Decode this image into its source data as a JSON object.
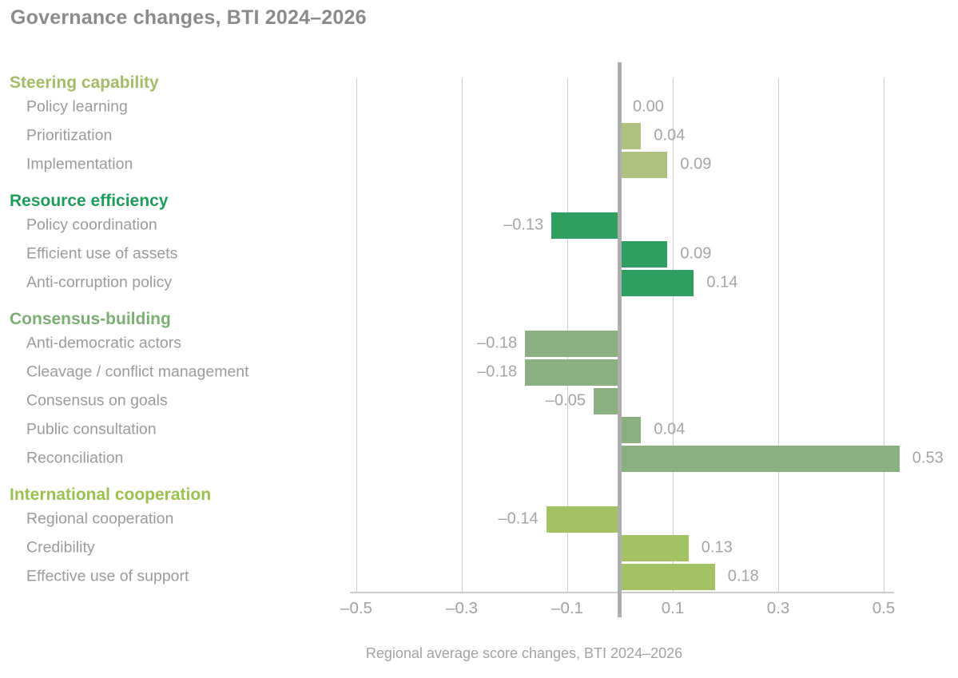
{
  "chart_data": {
    "type": "bar",
    "orientation": "horizontal",
    "title": "Governance changes, BTI 2024–2026",
    "xlabel": "Regional average score changes, BTI 2024–2026",
    "xlim": [
      -0.5,
      0.5
    ],
    "grid": "vertical",
    "x_ticks": [
      {
        "v": -0.5,
        "label": "–0.5"
      },
      {
        "v": -0.3,
        "label": "–0.3"
      },
      {
        "v": -0.1,
        "label": "–0.1"
      },
      {
        "v": 0.1,
        "label": "0.1"
      },
      {
        "v": 0.3,
        "label": "0.3"
      },
      {
        "v": 0.5,
        "label": "0.5"
      }
    ],
    "groups": [
      {
        "name": "Steering capability",
        "header_color": "#a5bb67",
        "bar_color": "#aec180",
        "items": [
          {
            "label": "Policy learning",
            "value": 0.0,
            "display": "0.00"
          },
          {
            "label": "Prioritization",
            "value": 0.04,
            "display": "0.04"
          },
          {
            "label": "Implementation",
            "value": 0.09,
            "display": "0.09"
          }
        ]
      },
      {
        "name": "Resource efficiency",
        "header_color": "#1f9c5c",
        "bar_color": "#2f9e60",
        "items": [
          {
            "label": "Policy coordination",
            "value": -0.13,
            "display": "–0.13"
          },
          {
            "label": "Efficient use of assets",
            "value": 0.09,
            "display": "0.09"
          },
          {
            "label": "Anti-corruption policy",
            "value": 0.14,
            "display": "0.14"
          }
        ]
      },
      {
        "name": "Consensus-building",
        "header_color": "#7bae73",
        "bar_color": "#8bb07f",
        "items": [
          {
            "label": "Anti-democratic actors",
            "value": -0.18,
            "display": "–0.18"
          },
          {
            "label": "Cleavage / conflict management",
            "value": -0.18,
            "display": "–0.18"
          },
          {
            "label": "Consensus on goals",
            "value": -0.05,
            "display": "–0.05"
          },
          {
            "label": "Public consultation",
            "value": 0.04,
            "display": "0.04"
          },
          {
            "label": "Reconciliation",
            "value": 0.53,
            "display": "0.53"
          }
        ]
      },
      {
        "name": "International cooperation",
        "header_color": "#9cc04f",
        "bar_color": "#a3c262",
        "items": [
          {
            "label": "Regional cooperation",
            "value": -0.14,
            "display": "–0.14"
          },
          {
            "label": "Credibility",
            "value": 0.13,
            "display": "0.13"
          },
          {
            "label": "Effective use of support",
            "value": 0.18,
            "display": "0.18"
          }
        ]
      }
    ],
    "colors": {
      "title_text": "#8b8b8b",
      "row_label_text": "#9b9b9b",
      "value_text": "#a5a5a5",
      "tick_text": "#a2a2a2",
      "gridline": "#cccccc",
      "zero_line": "#aeaeae",
      "axis_line": "#cdcdcd"
    }
  }
}
